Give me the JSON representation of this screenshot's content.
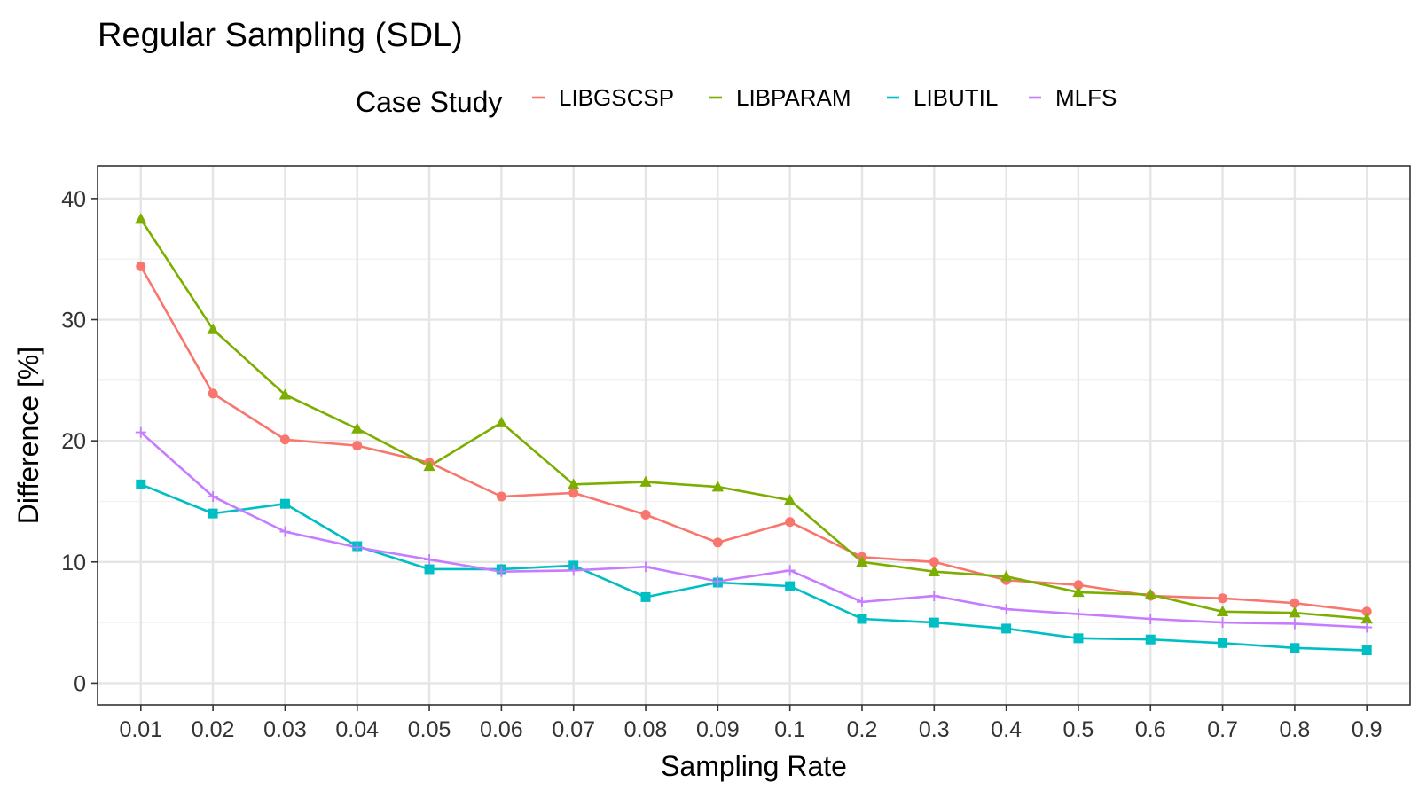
{
  "chart_data": {
    "type": "line",
    "title": "Regular Sampling (SDL)",
    "xlabel": "Sampling Rate",
    "ylabel": "Difference [%]",
    "categories": [
      "0.01",
      "0.02",
      "0.03",
      "0.04",
      "0.05",
      "0.06",
      "0.07",
      "0.08",
      "0.09",
      "0.1",
      "0.2",
      "0.3",
      "0.4",
      "0.5",
      "0.6",
      "0.7",
      "0.8",
      "0.9"
    ],
    "ylim": [
      -1.8,
      42.7
    ],
    "yticks": [
      "0",
      "10",
      "20",
      "30",
      "40"
    ],
    "grid": true,
    "legend": {
      "title": "Case Study",
      "placement": "top"
    },
    "series": [
      {
        "name": "LIBGSCSP",
        "color": "#F8766D",
        "marker": "circle",
        "values": [
          34.4,
          23.9,
          20.1,
          19.6,
          18.2,
          15.4,
          15.7,
          13.9,
          11.6,
          13.3,
          10.4,
          10.0,
          8.5,
          8.1,
          7.2,
          7.0,
          6.6,
          5.9
        ]
      },
      {
        "name": "LIBPARAM",
        "color": "#7CAE00",
        "marker": "triangle",
        "values": [
          38.3,
          29.2,
          23.8,
          21.0,
          17.9,
          21.5,
          16.4,
          16.6,
          16.2,
          15.1,
          10.0,
          9.2,
          8.8,
          7.5,
          7.3,
          5.9,
          5.8,
          5.3
        ]
      },
      {
        "name": "LIBUTIL",
        "color": "#00BFC4",
        "marker": "square",
        "values": [
          16.4,
          14.0,
          14.8,
          11.3,
          9.4,
          9.4,
          9.7,
          7.1,
          8.3,
          8.0,
          5.3,
          5.0,
          4.5,
          3.7,
          3.6,
          3.3,
          2.9,
          2.7
        ]
      },
      {
        "name": "MLFS",
        "color": "#C77CFF",
        "marker": "plus",
        "values": [
          20.7,
          15.4,
          12.5,
          11.2,
          10.2,
          9.2,
          9.3,
          9.6,
          8.4,
          9.3,
          6.7,
          7.2,
          6.1,
          5.7,
          5.3,
          5.0,
          4.9,
          4.6
        ]
      }
    ]
  }
}
